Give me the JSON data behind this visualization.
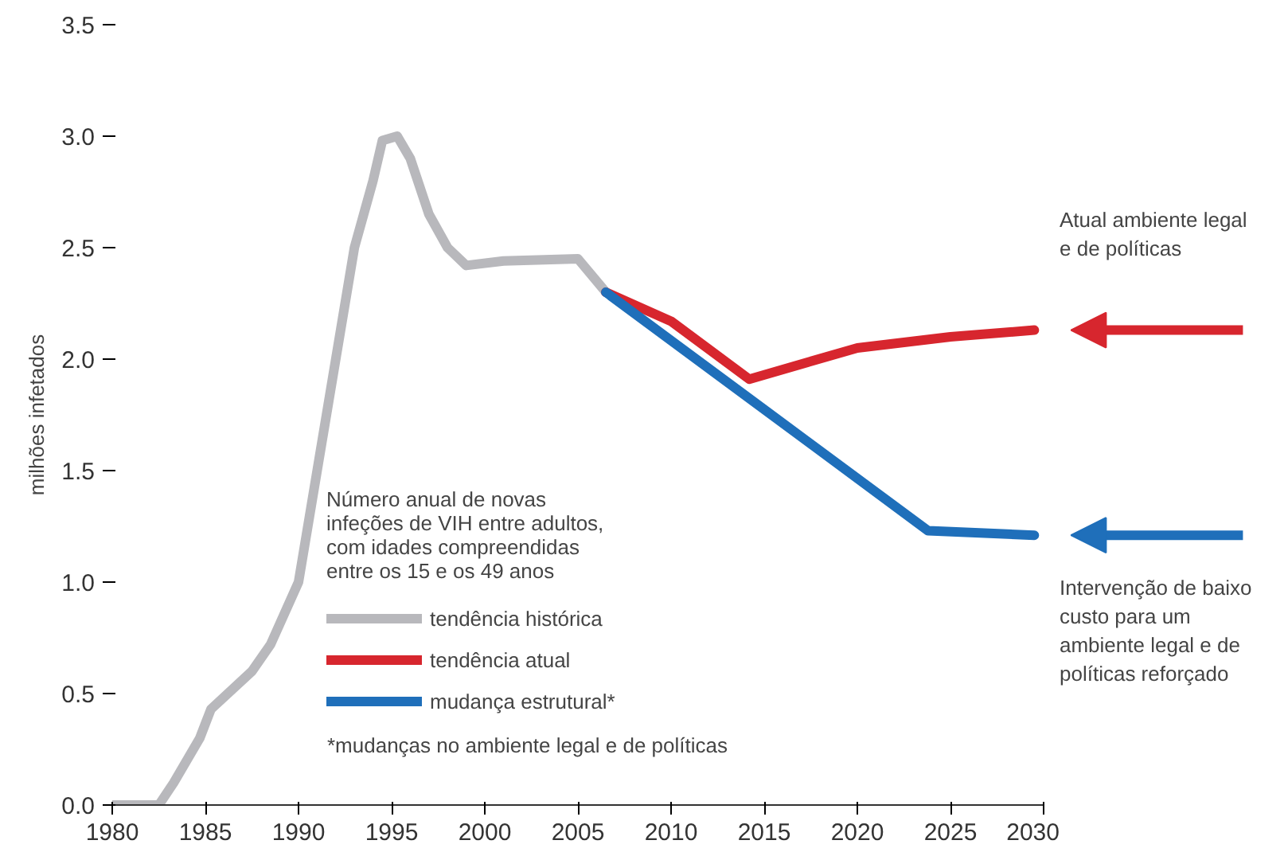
{
  "chart_data": {
    "type": "line",
    "ylabel": "milhões infetados",
    "legend_title": "Número anual de novas\ninfeções de VIH entre adultos,\ncom idades compreendidas\nentre os 15 e os 49 anos",
    "series": [
      {
        "name": "tendência histórica",
        "color": "#b8b8bc",
        "x": [
          1980,
          1982.5,
          1983.3,
          1984.7,
          1985.3,
          1987.5,
          1988.5,
          1990,
          1991,
          1992,
          1993,
          1994,
          1994.5,
          1995.3,
          1996,
          1997,
          1998,
          1999,
          2001,
          2005,
          2006.5
        ],
        "values": [
          0,
          0,
          0.1,
          0.3,
          0.43,
          0.6,
          0.72,
          1.0,
          1.5,
          2.0,
          2.5,
          2.8,
          2.98,
          3.0,
          2.9,
          2.65,
          2.5,
          2.42,
          2.44,
          2.45,
          2.3
        ]
      },
      {
        "name": "tendência atual",
        "color": "#d7262e",
        "x": [
          2006.5,
          2010,
          2014.2,
          2020,
          2025,
          2029.5
        ],
        "values": [
          2.3,
          2.17,
          1.91,
          2.05,
          2.1,
          2.13
        ]
      },
      {
        "name": "mudança estrutural*",
        "color": "#1f6fba",
        "x": [
          2006.5,
          2023.8,
          2029.5
        ],
        "values": [
          2.3,
          1.23,
          1.21
        ]
      }
    ],
    "annotations": [
      "*mudanças no ambiente legal e de políticas",
      "Atual ambiente legal\ne de políticas",
      "Intervenção de baixo\ncusto para um\nambiente legal e de\npolíticas reforçado"
    ],
    "xlim": [
      1980,
      2030
    ],
    "xticks": [
      1980,
      1985,
      1990,
      1995,
      2000,
      2005,
      2010,
      2015,
      2020,
      2025,
      2030
    ],
    "ylim": [
      0,
      3.5
    ],
    "yticks": [
      {
        "value": 0,
        "label": "0.0"
      },
      {
        "value": 0.5,
        "label": "0.5"
      },
      {
        "value": 1,
        "label": "1.0"
      },
      {
        "value": 1.5,
        "label": "1.5"
      },
      {
        "value": 2,
        "label": "2.0"
      },
      {
        "value": 2.5,
        "label": "2.5"
      },
      {
        "value": 3,
        "label": "3.0"
      },
      {
        "value": 3.5,
        "label": "3.5"
      }
    ],
    "grid": false,
    "legend": "bottom",
    "marker": "none",
    "line_style": "solid"
  }
}
